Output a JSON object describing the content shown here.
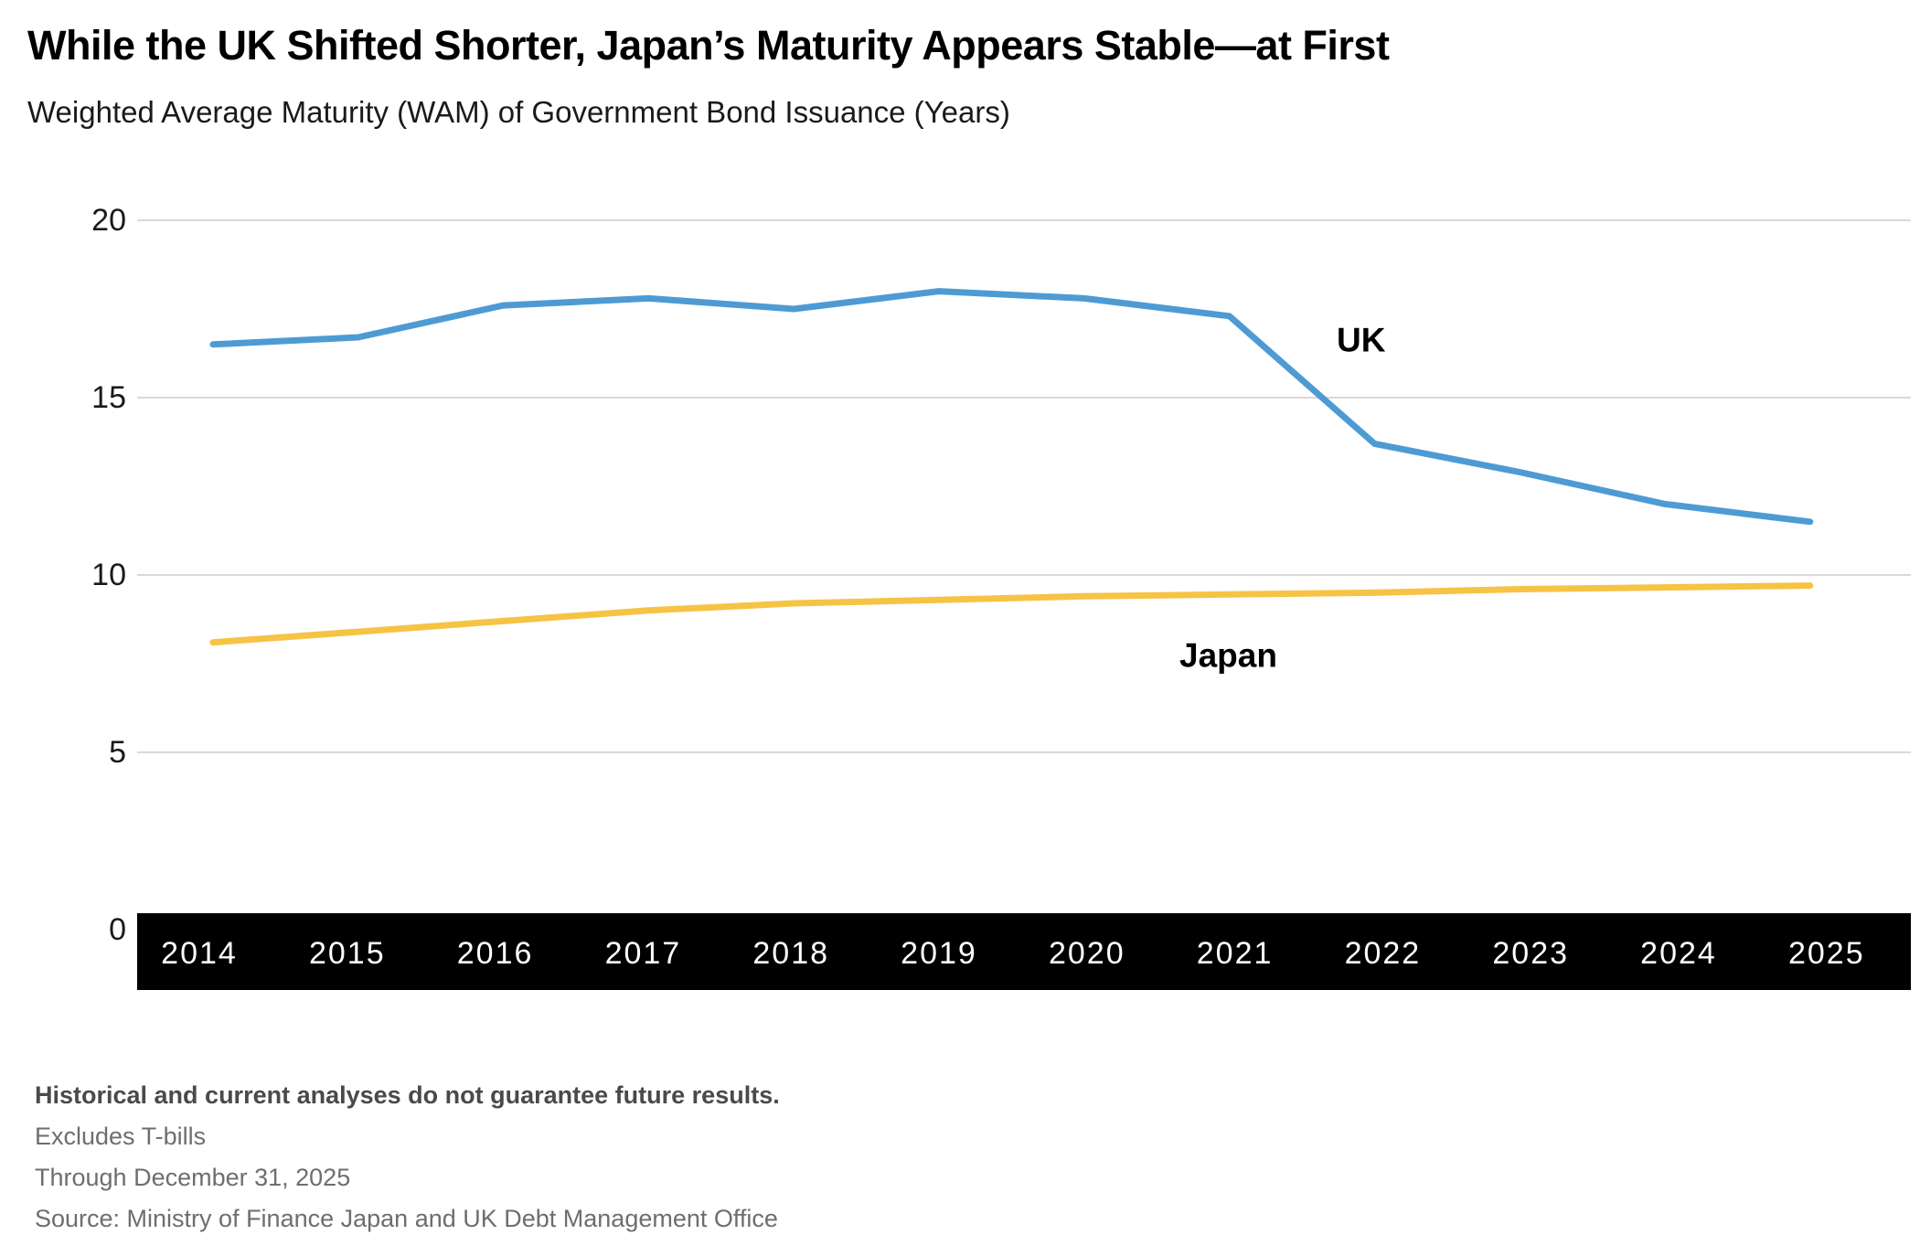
{
  "header": {
    "title": "While the UK Shifted Shorter, Japan’s Maturity Appears Stable—at First",
    "subtitle": "Weighted Average Maturity (WAM) of Government Bond Issuance (Years)"
  },
  "chart_data": {
    "type": "line",
    "title": "While the UK Shifted Shorter, Japan’s Maturity Appears Stable—at First",
    "subtitle": "Weighted Average Maturity (WAM) of Government Bond Issuance (Years)",
    "x": [
      2014,
      2015,
      2016,
      2017,
      2018,
      2019,
      2020,
      2021,
      2022,
      2023,
      2024,
      2025
    ],
    "series": [
      {
        "name": "UK",
        "color": "#4E9BD4",
        "values": [
          16.5,
          16.7,
          17.6,
          17.8,
          17.5,
          18.0,
          17.8,
          17.3,
          13.7,
          12.9,
          12.0,
          11.5
        ]
      },
      {
        "name": "Japan",
        "color": "#F6C345",
        "values": [
          8.1,
          8.4,
          8.7,
          9.0,
          9.2,
          9.3,
          9.4,
          9.45,
          9.5,
          9.6,
          9.65,
          9.7
        ]
      }
    ],
    "xlabel": "",
    "ylabel": "",
    "ylim": [
      0,
      20
    ],
    "yticks": [
      0,
      5,
      10,
      15,
      20
    ],
    "grid": true,
    "legend_position": "inline-annotations",
    "gridline_color": "#d9d9d9",
    "axis_band_color": "#000000",
    "axis_text_color": "#ffffff",
    "tick_text_color": "#1a1a1a"
  },
  "footnotes": {
    "disclaimer": "Historical and current analyses do not guarantee future results.",
    "note1": "Excludes T-bills",
    "note2": "Through December 31, 2025",
    "source": "Source: Ministry of Finance Japan and UK Debt Management Office"
  }
}
